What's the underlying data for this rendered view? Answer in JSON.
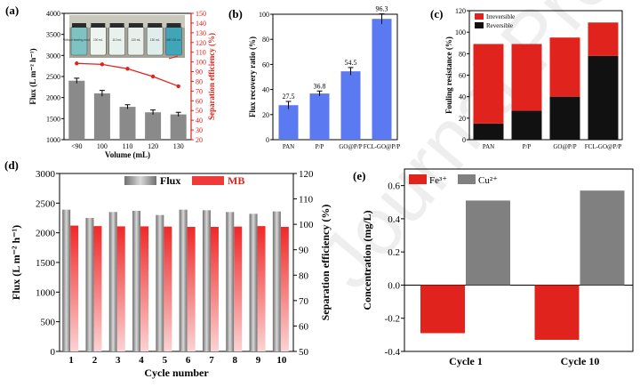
{
  "watermark": "Journal Pre-proof",
  "colors": {
    "gray_bar": "#8a8a8a",
    "blue_bar": "#5b79f0",
    "red": "#e0231c",
    "black": "#111111",
    "mb_red": "#f03a3a"
  },
  "chart_data": [
    {
      "panel": "(a)",
      "type": "bar",
      "categories": [
        "<90",
        "100",
        "110",
        "120",
        "130"
      ],
      "series": [
        {
          "name": "",
          "type": "bar",
          "values": [
            2400,
            2100,
            1780,
            1650,
            1600
          ],
          "errors": [
            60,
            70,
            50,
            55,
            50
          ]
        },
        {
          "name": "",
          "type": "line",
          "axis": "right",
          "values": [
            98.5,
            97.5,
            93,
            85,
            75
          ]
        }
      ],
      "xlabel": "Volume (mL)",
      "ylabel": "Flux (L m⁻² h⁻¹)",
      "y2label": "Separation efficiency (%)",
      "ylim": [
        1000,
        4000
      ],
      "y2lim": [
        20,
        150
      ],
      "inset_labels": [
        "Without treating emulsion",
        "100 mL",
        "110 mL",
        "120 mL",
        "130 mL",
        "MB 130 mL"
      ]
    },
    {
      "panel": "(b)",
      "type": "bar",
      "categories": [
        "PAN",
        "P/P",
        "GO@P/P",
        "FCL-GO@P/P"
      ],
      "values": [
        27.5,
        36.8,
        54.5,
        96.3
      ],
      "errors": [
        3,
        2,
        3,
        4
      ],
      "data_labels": [
        "27.5",
        "36.8",
        "54.5",
        "96.3"
      ],
      "ylabel": "Flux recovery ratio (%)",
      "ylim": [
        0,
        100
      ]
    },
    {
      "panel": "(c)",
      "type": "bar",
      "stacked": true,
      "categories": [
        "PAN",
        "P/P",
        "GO@P/P",
        "FCL-GO@P/P"
      ],
      "series": [
        {
          "name": "Reversible",
          "values": [
            15,
            27,
            40,
            78
          ]
        },
        {
          "name": "Irreversible",
          "values": [
            74,
            62,
            55,
            31
          ]
        }
      ],
      "ylabel": "Fouling resistance (%)",
      "ylim": [
        0,
        120
      ],
      "legend": "top-left"
    },
    {
      "panel": "(d)",
      "type": "bar",
      "categories": [
        "1",
        "2",
        "3",
        "4",
        "5",
        "6",
        "7",
        "8",
        "9",
        "10"
      ],
      "series": [
        {
          "name": "Flux",
          "values": [
            2390,
            2250,
            2350,
            2370,
            2300,
            2390,
            2380,
            2350,
            2320,
            2360
          ]
        },
        {
          "name": "MB",
          "axis": "right",
          "values": [
            99.5,
            99.3,
            99.2,
            99.2,
            99.1,
            99.0,
            99.0,
            99.1,
            99.3,
            99.0
          ]
        }
      ],
      "xlabel": "Cycle number",
      "ylabel": "Flux (L m⁻² h⁻¹)",
      "y2label": "Separation efficiency (%)",
      "ylim": [
        0,
        3000
      ],
      "y2lim": [
        50,
        120
      ],
      "legend": "top"
    },
    {
      "panel": "(e)",
      "type": "bar",
      "categories": [
        "Cycle 1",
        "Cycle 10"
      ],
      "series": [
        {
          "name": "Fe³⁺",
          "values": [
            -0.29,
            -0.33
          ]
        },
        {
          "name": "Cu²⁺",
          "values": [
            0.51,
            0.57
          ]
        }
      ],
      "ylabel": "Concentration (mg/L)",
      "ylim": [
        -0.4,
        0.7
      ],
      "legend": "top-left"
    }
  ]
}
